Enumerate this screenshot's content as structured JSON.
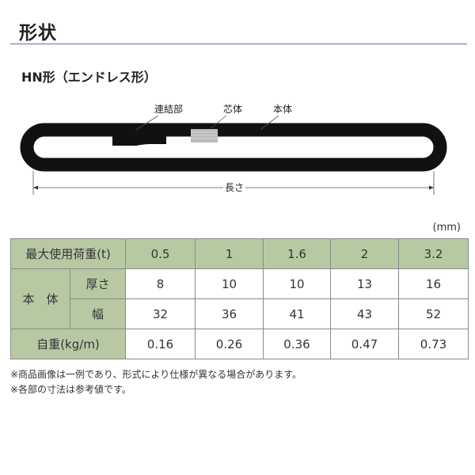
{
  "title": "形状",
  "subtitle": "HN形（エンドレス形）",
  "diagram": {
    "label_joint": "連結部",
    "label_core": "芯体",
    "label_body": "本体",
    "label_length": "長さ"
  },
  "table": {
    "unit": "(mm)",
    "header_color": "#b7c9a3",
    "load_label": "最大使用荷重(t)",
    "loads": [
      "0.5",
      "1",
      "1.6",
      "2",
      "3.2"
    ],
    "body_label": "本　体",
    "thickness_label": "厚さ",
    "thickness": [
      "8",
      "10",
      "10",
      "13",
      "16"
    ],
    "width_label": "幅",
    "width": [
      "32",
      "36",
      "41",
      "43",
      "52"
    ],
    "weight_label": "自重(kg/m)",
    "weight": [
      "0.16",
      "0.26",
      "0.36",
      "0.47",
      "0.73"
    ]
  },
  "notes": [
    "※商品画像は一例であり、形式により仕様が異なる場合があります。",
    "※各部の寸法は参考値です。"
  ]
}
